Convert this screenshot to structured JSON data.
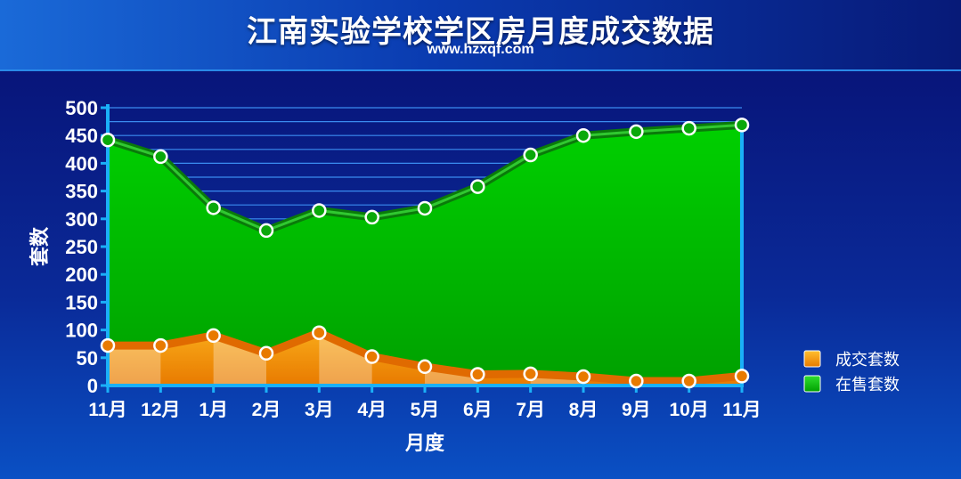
{
  "header": {
    "title": "江南实验学校学区房月度成交数据",
    "subtitle": "www.hzxqf.com"
  },
  "chart_data": {
    "type": "area",
    "categories": [
      "11月",
      "12月",
      "1月",
      "2月",
      "3月",
      "4月",
      "5月",
      "6月",
      "7月",
      "8月",
      "9月",
      "10月",
      "11月"
    ],
    "series": [
      {
        "name": "成交套数",
        "values": [
          72,
          72,
          90,
          58,
          95,
          52,
          34,
          20,
          21,
          16,
          8,
          8,
          17
        ],
        "color": "#f08a0a"
      },
      {
        "name": "在售套数",
        "values": [
          442,
          412,
          320,
          279,
          315,
          303,
          319,
          358,
          415,
          450,
          457,
          463,
          469
        ],
        "color": "#0ab80a"
      }
    ],
    "title": "江南实验学校学区房月度成交数据",
    "subtitle": "www.hzxqf.com",
    "xlabel": "月度",
    "ylabel": "套数",
    "ylim": [
      0,
      500
    ],
    "yticks": [
      0,
      50,
      100,
      150,
      200,
      250,
      300,
      350,
      400,
      450,
      500
    ],
    "grid": true,
    "legend": "right"
  }
}
